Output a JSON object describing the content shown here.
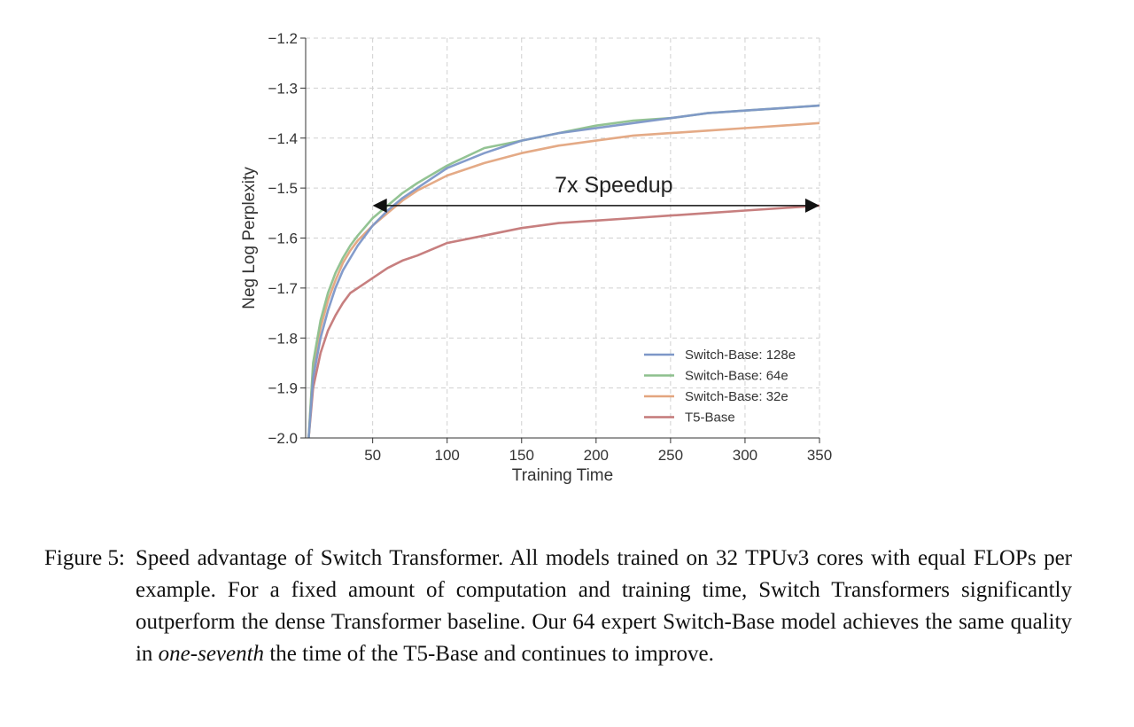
{
  "chart_data": {
    "type": "line",
    "title": "",
    "xlabel": "Training Time",
    "ylabel": "Neg Log Perplexity",
    "xlim": [
      5,
      350
    ],
    "ylim": [
      -2.0,
      -1.2
    ],
    "xticks": [
      50,
      100,
      150,
      200,
      250,
      300,
      350
    ],
    "yticks": [
      -2.0,
      -1.9,
      -1.8,
      -1.7,
      -1.6,
      -1.5,
      -1.4,
      -1.3,
      -1.2
    ],
    "ytick_labels": [
      "−2.0",
      "−1.9",
      "−1.8",
      "−1.7",
      "−1.6",
      "−1.5",
      "−1.4",
      "−1.3",
      "−1.2"
    ],
    "xtick_labels": [
      "50",
      "100",
      "150",
      "200",
      "250",
      "300",
      "350"
    ],
    "grid": true,
    "legend_position": "bottom-right",
    "x": [
      7,
      10,
      15,
      20,
      25,
      30,
      35,
      40,
      50,
      60,
      70,
      80,
      100,
      125,
      150,
      175,
      200,
      225,
      250,
      275,
      300,
      325,
      350
    ],
    "series": [
      {
        "name": "Switch-Base: 128e",
        "color": "#7d97c8",
        "values": [
          -2.0,
          -1.88,
          -1.8,
          -1.745,
          -1.7,
          -1.665,
          -1.64,
          -1.615,
          -1.575,
          -1.545,
          -1.52,
          -1.5,
          -1.46,
          -1.43,
          -1.405,
          -1.39,
          -1.38,
          -1.37,
          -1.36,
          -1.35,
          -1.345,
          -1.34,
          -1.335
        ]
      },
      {
        "name": "Switch-Base: 64e",
        "color": "#8dc08d",
        "values": [
          -2.0,
          -1.85,
          -1.765,
          -1.71,
          -1.67,
          -1.64,
          -1.615,
          -1.595,
          -1.56,
          -1.535,
          -1.51,
          -1.49,
          -1.455,
          -1.42,
          -1.405,
          -1.39,
          -1.375,
          -1.365,
          -1.36,
          -1.35,
          -1.345,
          -1.34,
          -1.335
        ]
      },
      {
        "name": "Switch-Base: 32e",
        "color": "#e3a57f",
        "values": [
          -2.0,
          -1.86,
          -1.78,
          -1.725,
          -1.685,
          -1.65,
          -1.625,
          -1.605,
          -1.575,
          -1.55,
          -1.525,
          -1.505,
          -1.475,
          -1.45,
          -1.43,
          -1.415,
          -1.405,
          -1.395,
          -1.39,
          -1.385,
          -1.38,
          -1.375,
          -1.37
        ]
      },
      {
        "name": "T5-Base",
        "color": "#c47878",
        "values": [
          -2.0,
          -1.9,
          -1.83,
          -1.785,
          -1.755,
          -1.73,
          -1.71,
          -1.7,
          -1.68,
          -1.66,
          -1.645,
          -1.635,
          -1.61,
          -1.595,
          -1.58,
          -1.57,
          -1.565,
          -1.56,
          -1.555,
          -1.55,
          -1.545,
          -1.54,
          -1.535
        ]
      }
    ],
    "annotation": {
      "text": "7x Speedup",
      "arrow_from_x": 50,
      "arrow_to_x": 350,
      "arrow_y": -1.535
    }
  },
  "caption": {
    "label": "Figure 5:",
    "body_1": "Speed advantage of Switch Transformer. All models trained on 32 TPUv3 cores with equal FLOPs per example. For a fixed amount of computation and training time, Switch Transformers significantly outperform the dense Transformer baseline. Our 64 expert Switch-Base model achieves the same quality in ",
    "emphasis": "one-seventh",
    "body_2": " the time of the T5-Base and continues to improve."
  }
}
